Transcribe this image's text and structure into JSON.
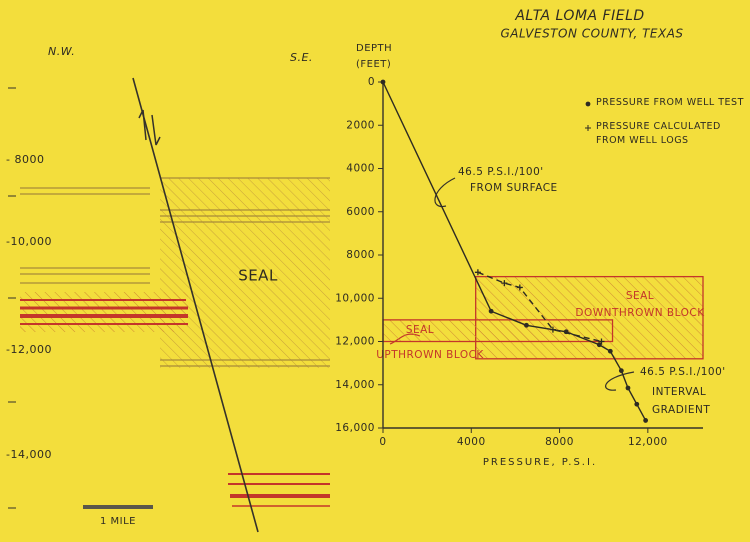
{
  "title": "ALTA LOMA FIELD",
  "subtitle": "GALVESTON COUNTY, TEXAS",
  "cross_section": {
    "left_label": "N.W.",
    "right_label": "S.E.",
    "depth_labels": [
      "- 8000",
      "-10,000",
      "-12,000",
      "-14,000"
    ],
    "seal_label": "SEAL",
    "scale_label": "1 MILE"
  },
  "chart_data": {
    "type": "line",
    "xlabel": "PRESSURE,  P.S.I.",
    "ylabel": [
      "DEPTH",
      "(FEET)"
    ],
    "xlim": [
      0,
      14500
    ],
    "ylim": [
      0,
      16000
    ],
    "y_inverted": true,
    "xticks": [
      0,
      4000,
      8000,
      {
        "value": 12000,
        "label": "12,000"
      }
    ],
    "yticks": [
      0,
      2000,
      4000,
      6000,
      8000,
      {
        "value": 10000,
        "label": "10,000"
      },
      {
        "value": 12000,
        "label": "12,000"
      },
      {
        "value": 14000,
        "label": "14,000"
      },
      {
        "value": 16000,
        "label": "16,000"
      }
    ],
    "series": [
      {
        "name": "PRESSURE FROM WELL TEST",
        "marker": "dot",
        "color": "#2e2b22",
        "x": [
          0,
          4900,
          6500,
          8300,
          9800,
          10300,
          10800,
          11100,
          11500,
          11900
        ],
        "values": [
          0,
          10600,
          11250,
          11550,
          12150,
          12450,
          13350,
          14150,
          14900,
          15650
        ]
      },
      {
        "name": "PRESSURE CALCULATED FROM WELL LOGS",
        "marker": "plus",
        "color": "#2e2b22",
        "x": [
          4300,
          5500,
          6200,
          7700,
          9900
        ],
        "values": [
          8800,
          9300,
          9500,
          11450,
          12000
        ]
      }
    ],
    "bands": [
      {
        "label": [
          "SEAL",
          "DOWNTHROWN BLOCK"
        ],
        "xlim": [
          4200,
          14500
        ],
        "ylim": [
          9000,
          12800
        ],
        "color": "#c4362a"
      },
      {
        "label": [
          "SEAL",
          "UPTHROWN BLOCK"
        ],
        "xlim": [
          0,
          10400
        ],
        "ylim": [
          11000,
          12000
        ],
        "color": "#c4362a"
      }
    ],
    "annotations": [
      [
        "46.5 P.S.I./100'",
        "FROM SURFACE"
      ],
      [
        "46.5 P.S.I./100'",
        "INTERVAL",
        "GRADIENT"
      ]
    ]
  }
}
